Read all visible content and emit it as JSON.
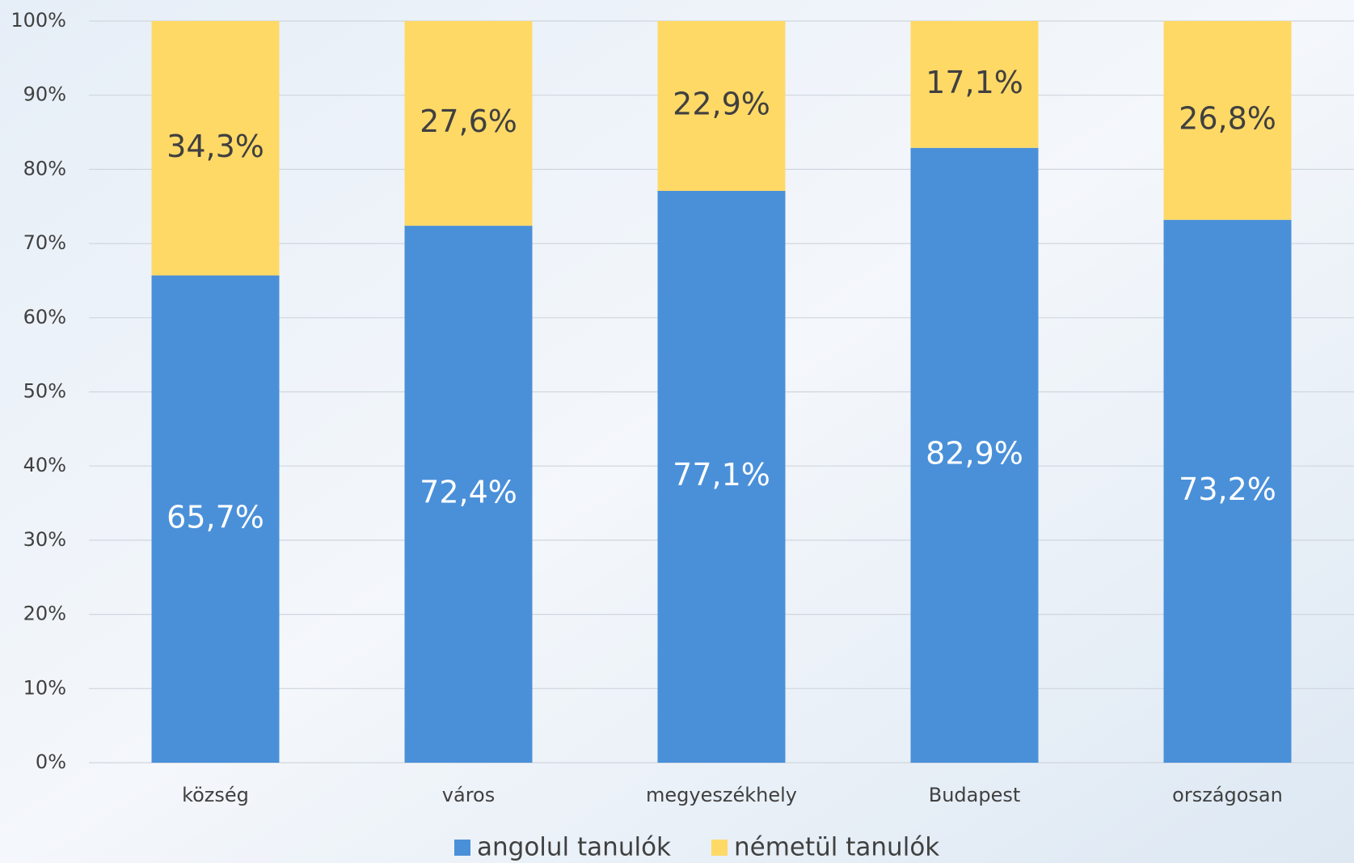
{
  "chart_data": {
    "type": "stacked_bar",
    "categories": [
      "község",
      "város",
      "megyeszékhely",
      "Budapest",
      "országosan"
    ],
    "series": [
      {
        "name": "angolul tanulók",
        "color": "#4a90d9",
        "values": [
          65.7,
          72.4,
          77.1,
          82.9,
          73.2
        ],
        "value_labels": [
          "65,7%",
          "72,4%",
          "77,1%",
          "82,9%",
          "73,2%"
        ]
      },
      {
        "name": "németül tanulók",
        "color": "#ffd966",
        "values": [
          34.3,
          27.6,
          22.9,
          17.1,
          26.8
        ],
        "value_labels": [
          "34,3%",
          "27,6%",
          "22,9%",
          "17,1%",
          "26,8%"
        ]
      }
    ],
    "ylim": [
      0,
      100
    ],
    "yticks": [
      {
        "value": 0,
        "label": "0%"
      },
      {
        "value": 10,
        "label": "10%"
      },
      {
        "value": 20,
        "label": "20%"
      },
      {
        "value": 30,
        "label": "30%"
      },
      {
        "value": 40,
        "label": "40%"
      },
      {
        "value": 50,
        "label": "50%"
      },
      {
        "value": 60,
        "label": "60%"
      },
      {
        "value": 70,
        "label": "70%"
      },
      {
        "value": 80,
        "label": "80%"
      },
      {
        "value": 90,
        "label": "90%"
      },
      {
        "value": 100,
        "label": "100%"
      }
    ],
    "grid": true,
    "legend": "bottom"
  }
}
